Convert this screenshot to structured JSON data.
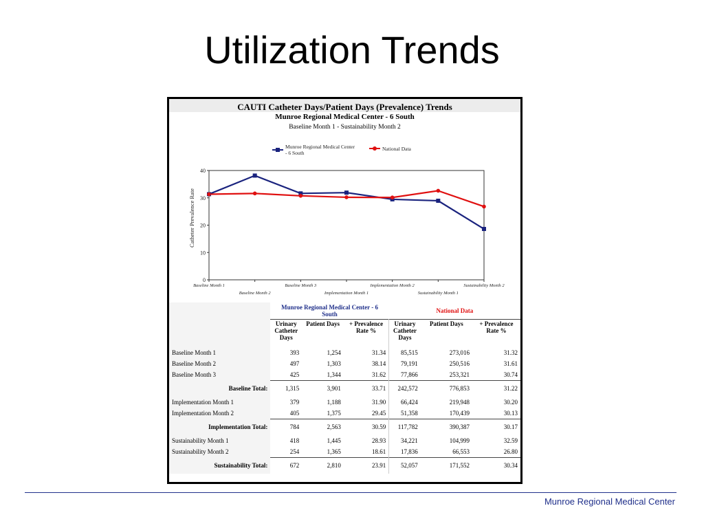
{
  "slide": {
    "title": "Utilization Trends",
    "footer": "Munroe Regional Medical Center"
  },
  "chart_data": {
    "type": "line",
    "title": "CAUTI Catheter Days/Patient Days (Prevalence) Trends",
    "subtitle": "Munroe Regional Medical Center - 6 South",
    "subtitle2": "Baseline Month 1 - Sustainability Month 2",
    "xlabel": "",
    "ylabel": "Catheter Prevalence Rate",
    "ylim": [
      0,
      40
    ],
    "yticks": [
      0,
      10,
      20,
      30,
      40
    ],
    "grid": false,
    "legend_position": "top",
    "categories": [
      "Baseline Month 1",
      "Baseline Month 2",
      "Baseline Month 3",
      "Implementation Month 1",
      "Implementation Month 2",
      "Sustainability Month 1",
      "Sustainability Month 2"
    ],
    "series": [
      {
        "name": "Munroe Regional Medical Center - 6 South",
        "color": "#1a237e",
        "marker": "square",
        "values": [
          31.34,
          38.14,
          31.62,
          31.9,
          29.45,
          28.93,
          18.61
        ]
      },
      {
        "name": "National Data",
        "color": "#e01010",
        "marker": "circle",
        "values": [
          31.32,
          31.61,
          30.74,
          30.2,
          30.13,
          32.59,
          26.8
        ]
      }
    ]
  },
  "table": {
    "group_munroe": "Munroe Regional Medical Center - 6 South",
    "group_national": "National Data",
    "col_catheter": "Urinary Catheter Days",
    "col_patient": "Patient Days",
    "col_rate": "+ Prevalence Rate %",
    "rows": [
      {
        "label": "Baseline Month 1",
        "m_cd": "393",
        "m_pd": "1,254",
        "m_rate": "31.34",
        "n_cd": "85,515",
        "n_pd": "273,016",
        "n_rate": "31.32"
      },
      {
        "label": "Baseline Month 2",
        "m_cd": "497",
        "m_pd": "1,303",
        "m_rate": "38.14",
        "n_cd": "79,191",
        "n_pd": "250,516",
        "n_rate": "31.61"
      },
      {
        "label": "Baseline Month 3",
        "m_cd": "425",
        "m_pd": "1,344",
        "m_rate": "31.62",
        "n_cd": "77,866",
        "n_pd": "253,321",
        "n_rate": "30.74"
      },
      {
        "label": "Baseline Total:",
        "m_cd": "1,315",
        "m_pd": "3,901",
        "m_rate": "33.71",
        "n_cd": "242,572",
        "n_pd": "776,853",
        "n_rate": "31.22"
      },
      {
        "label": "Implementation Month 1",
        "m_cd": "379",
        "m_pd": "1,188",
        "m_rate": "31.90",
        "n_cd": "66,424",
        "n_pd": "219,948",
        "n_rate": "30.20"
      },
      {
        "label": "Implementation Month 2",
        "m_cd": "405",
        "m_pd": "1,375",
        "m_rate": "29.45",
        "n_cd": "51,358",
        "n_pd": "170,439",
        "n_rate": "30.13"
      },
      {
        "label": "Implementation Total:",
        "m_cd": "784",
        "m_pd": "2,563",
        "m_rate": "30.59",
        "n_cd": "117,782",
        "n_pd": "390,387",
        "n_rate": "30.17"
      },
      {
        "label": "Sustainability Month 1",
        "m_cd": "418",
        "m_pd": "1,445",
        "m_rate": "28.93",
        "n_cd": "34,221",
        "n_pd": "104,999",
        "n_rate": "32.59"
      },
      {
        "label": "Sustainability Month 2",
        "m_cd": "254",
        "m_pd": "1,365",
        "m_rate": "18.61",
        "n_cd": "17,836",
        "n_pd": "66,553",
        "n_rate": "26.80"
      },
      {
        "label": "Sustainability Total:",
        "m_cd": "672",
        "m_pd": "2,810",
        "m_rate": "23.91",
        "n_cd": "52,057",
        "n_pd": "171,552",
        "n_rate": "30.34"
      }
    ]
  }
}
